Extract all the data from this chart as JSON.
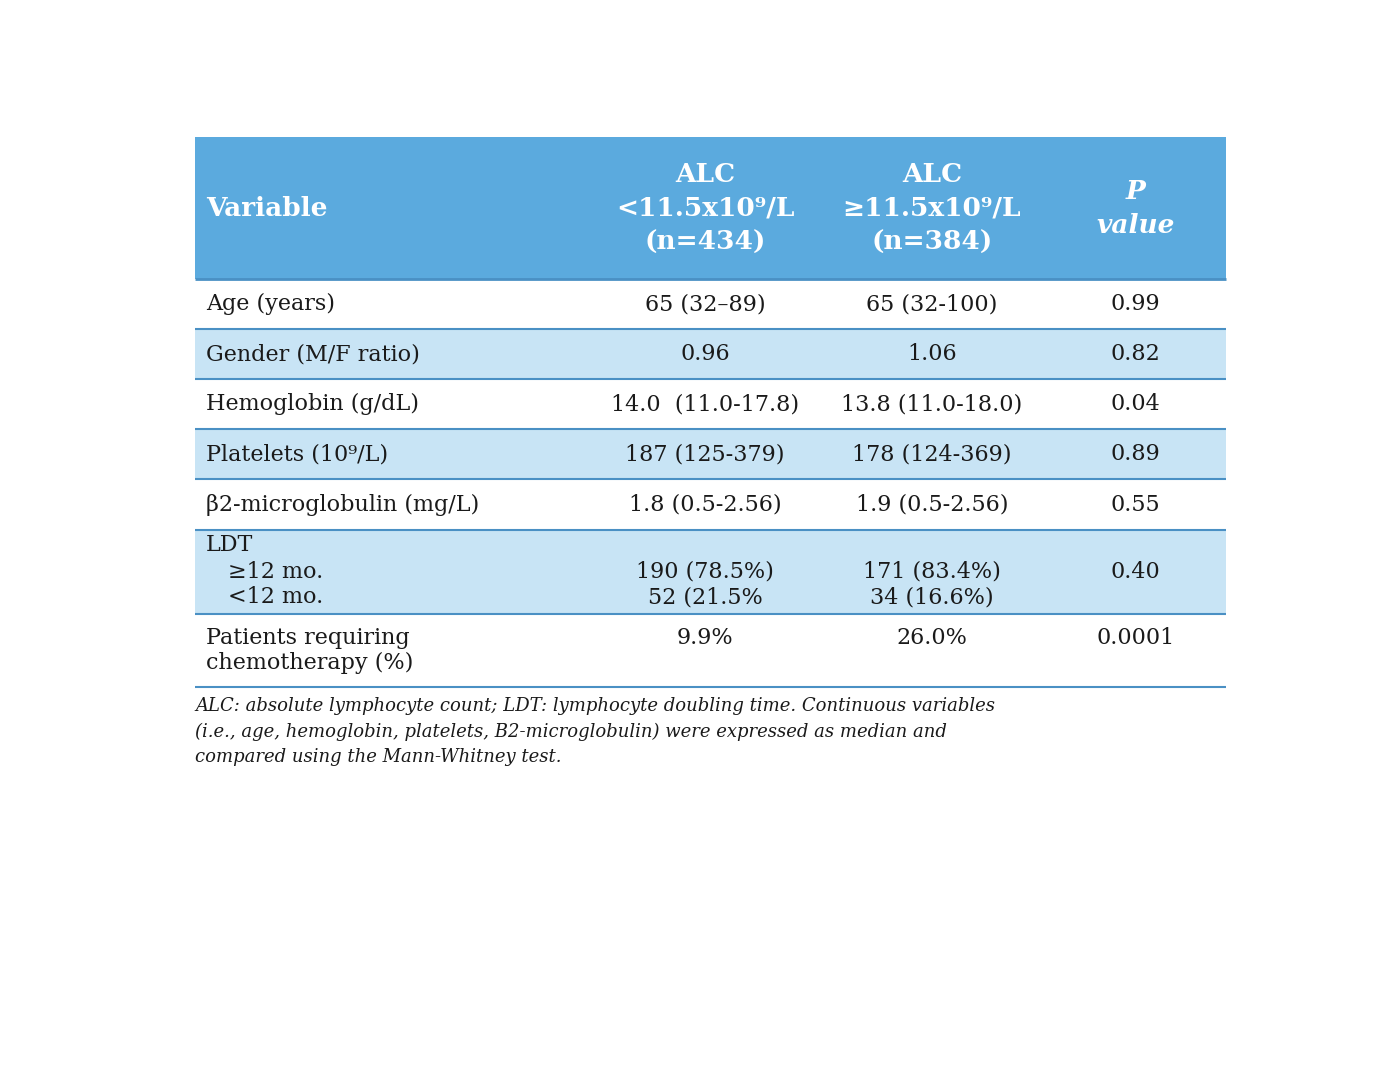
{
  "header_bg": "#5baade",
  "header_text_color": "#ffffff",
  "border_color": "#4a90c4",
  "text_color": "#1a1a1a",
  "footer_text_color": "#1a1a1a",
  "header": {
    "col0": "Variable",
    "col1": "ALC\n<11.5x10⁹/L\n(n=434)",
    "col2": "ALC\n≥11.5x10⁹/L\n(n=384)",
    "col3": "P\nvalue"
  },
  "rows": [
    {
      "bg": "#ffffff",
      "col0": "Age (years)",
      "col1": "65 (32–89)",
      "col2": "65 (32-100)",
      "col3": "0.99",
      "multiline": false
    },
    {
      "bg": "#c8e4f5",
      "col0": "Gender (M/F ratio)",
      "col1": "0.96",
      "col2": "1.06",
      "col3": "0.82",
      "multiline": false
    },
    {
      "bg": "#ffffff",
      "col0": "Hemoglobin (g/dL)",
      "col1": "14.0  (11.0-17.8)",
      "col2": "13.8 (11.0-18.0)",
      "col3": "0.04",
      "multiline": false
    },
    {
      "bg": "#c8e4f5",
      "col0": "Platelets (10⁹/L)",
      "col1": "187 (125-379)",
      "col2": "178 (124-369)",
      "col3": "0.89",
      "multiline": false
    },
    {
      "bg": "#ffffff",
      "col0": "β2-microglobulin (mg/L)",
      "col1": "1.8 (0.5-2.56)",
      "col2": "1.9 (0.5-2.56)",
      "col3": "0.55",
      "multiline": false
    },
    {
      "bg": "#c8e4f5",
      "col0_lines": [
        "LDT",
        "≥12 mo.",
        "<12 mo."
      ],
      "col0_indent": [
        false,
        true,
        true
      ],
      "col1_lines": [
        "",
        "190 (78.5%)",
        "52 (21.5%"
      ],
      "col2_lines": [
        "",
        "171 (83.4%)",
        "34 (16.6%)"
      ],
      "col3_lines": [
        "",
        "0.40",
        ""
      ],
      "multiline": true
    },
    {
      "bg": "#ffffff",
      "col0_lines": [
        "Patients requiring",
        "chemotherapy (%)"
      ],
      "col1": "9.9%",
      "col2": "26.0%",
      "col3": "0.0001",
      "multiline": "two_line_label"
    }
  ],
  "footer": "ALC: absolute lymphocyte count; LDT: lymphocyte doubling time. Continuous variables\n(i.e., age, hemoglobin, platelets, B2-microglobulin) were expressed as median and\ncompared using the Mann-Whitney test."
}
